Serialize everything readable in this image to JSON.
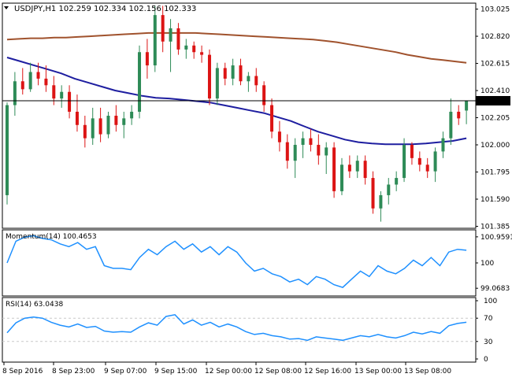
{
  "header": {
    "symbol_line": "USDJPY,H1  102.259 102.334 102.156 102.333"
  },
  "colors": {
    "bull": "#2e8b57",
    "bear": "#dc1414",
    "ma_slow": "#a0522d",
    "ma_fast": "#1e1ea0",
    "indicator": "#1e90ff",
    "grid": "#c8c8c8",
    "frame": "#000000"
  },
  "chart_data": [
    {
      "type": "candlestick",
      "panel": "price",
      "title": "USDJPY,H1",
      "ohlc_readout": [
        "102.259",
        "102.334",
        "102.156",
        "102.333"
      ],
      "current_price": "102.333",
      "yticks": [
        "103.025",
        "102.820",
        "102.615",
        "102.410",
        "102.205",
        "102.000",
        "101.795",
        "101.590",
        "101.385"
      ],
      "ylim": [
        101.37,
        103.07
      ],
      "xticks": [
        "8 Sep 2016",
        "8 Sep 23:00",
        "9 Sep 07:00",
        "9 Sep 15:00",
        "12 Sep 00:00",
        "12 Sep 08:00",
        "12 Sep 16:00",
        "13 Sep 00:00",
        "13 Sep 08:00"
      ],
      "candles": [
        [
          101.62,
          102.32,
          101.55,
          102.3
        ],
        [
          102.3,
          102.55,
          102.22,
          102.48
        ],
        [
          102.48,
          102.58,
          102.38,
          102.42
        ],
        [
          102.42,
          102.62,
          102.4,
          102.55
        ],
        [
          102.55,
          102.62,
          102.45,
          102.5
        ],
        [
          102.5,
          102.6,
          102.4,
          102.45
        ],
        [
          102.45,
          102.52,
          102.3,
          102.35
        ],
        [
          102.35,
          102.45,
          102.28,
          102.4
        ],
        [
          102.4,
          102.45,
          102.2,
          102.25
        ],
        [
          102.25,
          102.38,
          102.1,
          102.15
        ],
        [
          102.15,
          102.22,
          101.98,
          102.05
        ],
        [
          102.05,
          102.28,
          102.0,
          102.2
        ],
        [
          102.2,
          102.28,
          102.02,
          102.08
        ],
        [
          102.08,
          102.25,
          102.05,
          102.22
        ],
        [
          102.22,
          102.3,
          102.1,
          102.15
        ],
        [
          102.15,
          102.25,
          102.05,
          102.2
        ],
        [
          102.2,
          102.3,
          102.15,
          102.25
        ],
        [
          102.25,
          102.75,
          102.2,
          102.7
        ],
        [
          102.7,
          102.8,
          102.5,
          102.6
        ],
        [
          102.6,
          103.05,
          102.55,
          102.98
        ],
        [
          102.98,
          103.05,
          102.7,
          102.78
        ],
        [
          102.78,
          102.95,
          102.55,
          102.88
        ],
        [
          102.88,
          102.92,
          102.68,
          102.72
        ],
        [
          102.72,
          102.8,
          102.65,
          102.75
        ],
        [
          102.75,
          102.78,
          102.65,
          102.7
        ],
        [
          102.7,
          102.75,
          102.62,
          102.68
        ],
        [
          102.68,
          102.72,
          102.3,
          102.35
        ],
        [
          102.35,
          102.62,
          102.3,
          102.58
        ],
        [
          102.58,
          102.62,
          102.45,
          102.5
        ],
        [
          102.5,
          102.65,
          102.45,
          102.6
        ],
        [
          102.6,
          102.65,
          102.45,
          102.48
        ],
        [
          102.48,
          102.55,
          102.4,
          102.52
        ],
        [
          102.52,
          102.58,
          102.4,
          102.45
        ],
        [
          102.45,
          102.48,
          102.25,
          102.3
        ],
        [
          102.3,
          102.35,
          102.05,
          102.1
        ],
        [
          102.1,
          102.18,
          101.95,
          102.02
        ],
        [
          102.02,
          102.08,
          101.82,
          101.88
        ],
        [
          101.88,
          102.05,
          101.75,
          102.0
        ],
        [
          102.0,
          102.1,
          101.9,
          102.05
        ],
        [
          102.05,
          102.12,
          101.95,
          102.0
        ],
        [
          102.0,
          102.08,
          101.85,
          101.92
        ],
        [
          101.92,
          102.02,
          101.78,
          101.98
        ],
        [
          101.98,
          102.02,
          101.6,
          101.65
        ],
        [
          101.65,
          101.9,
          101.62,
          101.85
        ],
        [
          101.85,
          101.92,
          101.75,
          101.8
        ],
        [
          101.8,
          101.92,
          101.75,
          101.88
        ],
        [
          101.88,
          101.92,
          101.7,
          101.75
        ],
        [
          101.75,
          101.8,
          101.48,
          101.52
        ],
        [
          101.52,
          101.65,
          101.42,
          101.62
        ],
        [
          101.62,
          101.75,
          101.55,
          101.7
        ],
        [
          101.7,
          101.8,
          101.65,
          101.75
        ],
        [
          101.75,
          102.05,
          101.72,
          102.0
        ],
        [
          102.0,
          102.02,
          101.85,
          101.9
        ],
        [
          101.9,
          101.95,
          101.8,
          101.85
        ],
        [
          101.85,
          101.9,
          101.75,
          101.8
        ],
        [
          101.8,
          101.98,
          101.72,
          101.95
        ],
        [
          101.95,
          102.1,
          101.9,
          102.05
        ],
        [
          102.05,
          102.35,
          102.0,
          102.25
        ],
        [
          102.25,
          102.3,
          102.15,
          102.2
        ],
        [
          102.259,
          102.334,
          102.156,
          102.333
        ]
      ],
      "ma_slow_values": [
        102.795,
        102.8,
        102.805,
        102.805,
        102.81,
        102.81,
        102.815,
        102.82,
        102.825,
        102.83,
        102.835,
        102.84,
        102.845,
        102.845,
        102.845,
        102.845,
        102.845,
        102.84,
        102.835,
        102.83,
        102.825,
        102.82,
        102.815,
        102.81,
        102.805,
        102.8,
        102.795,
        102.785,
        102.775,
        102.76,
        102.745,
        102.73,
        102.715,
        102.7,
        102.68,
        102.665,
        102.65,
        102.64,
        102.63,
        102.62
      ],
      "ma_fast_values": [
        102.66,
        102.63,
        102.6,
        102.57,
        102.54,
        102.5,
        102.47,
        102.44,
        102.41,
        102.39,
        102.37,
        102.355,
        102.35,
        102.34,
        102.33,
        102.32,
        102.3,
        102.28,
        102.26,
        102.24,
        102.21,
        102.18,
        102.14,
        102.1,
        102.07,
        102.04,
        102.02,
        102.01,
        102.005,
        102.005,
        102.005,
        102.01,
        102.02,
        102.03,
        102.05
      ]
    },
    {
      "type": "line",
      "panel": "momentum",
      "title": "Momentum(14) 100.4653",
      "yticks": [
        "100.9591",
        "100",
        "99.0683"
      ],
      "ylim": [
        98.9,
        101.1
      ],
      "values": [
        100.0,
        100.8,
        100.95,
        101.0,
        100.9,
        100.85,
        100.7,
        100.6,
        100.75,
        100.5,
        100.6,
        99.9,
        99.8,
        99.8,
        99.75,
        100.2,
        100.5,
        100.3,
        100.6,
        100.8,
        100.5,
        100.7,
        100.4,
        100.6,
        100.3,
        100.6,
        100.4,
        100.0,
        99.7,
        99.8,
        99.6,
        99.5,
        99.3,
        99.4,
        99.2,
        99.5,
        99.4,
        99.2,
        99.1,
        99.4,
        99.7,
        99.5,
        99.9,
        99.7,
        99.6,
        99.8,
        100.1,
        99.9,
        100.2,
        99.9,
        100.4,
        100.5,
        100.465
      ]
    },
    {
      "type": "line",
      "panel": "rsi",
      "title": "RSI(14) 63.0438",
      "yticks": [
        "100",
        "70",
        "30",
        "0"
      ],
      "ylim": [
        0,
        100
      ],
      "levels": [
        70,
        30
      ],
      "values": [
        45,
        62,
        70,
        72,
        70,
        63,
        58,
        55,
        60,
        54,
        56,
        48,
        46,
        47,
        46,
        55,
        62,
        58,
        73,
        76,
        60,
        67,
        58,
        63,
        55,
        60,
        55,
        47,
        42,
        44,
        40,
        38,
        34,
        35,
        32,
        38,
        36,
        34,
        32,
        36,
        40,
        38,
        42,
        38,
        36,
        40,
        46,
        43,
        47,
        44,
        57,
        61,
        63.0
      ]
    }
  ]
}
